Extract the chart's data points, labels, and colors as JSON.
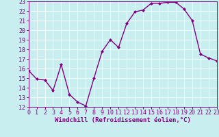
{
  "x": [
    0,
    1,
    2,
    3,
    4,
    5,
    6,
    7,
    8,
    9,
    10,
    11,
    12,
    13,
    14,
    15,
    16,
    17,
    18,
    19,
    20,
    21,
    22,
    23
  ],
  "y": [
    15.8,
    14.9,
    14.8,
    13.7,
    16.4,
    13.3,
    12.5,
    12.1,
    15.0,
    17.8,
    19.0,
    18.2,
    20.7,
    21.9,
    22.1,
    22.8,
    22.8,
    22.9,
    22.9,
    22.2,
    21.0,
    17.5,
    17.1,
    16.8
  ],
  "ylim": [
    12,
    23
  ],
  "xlim": [
    0,
    23
  ],
  "yticks": [
    12,
    13,
    14,
    15,
    16,
    17,
    18,
    19,
    20,
    21,
    22,
    23
  ],
  "xticks": [
    0,
    1,
    2,
    3,
    4,
    5,
    6,
    7,
    8,
    9,
    10,
    11,
    12,
    13,
    14,
    15,
    16,
    17,
    18,
    19,
    20,
    21,
    22,
    23
  ],
  "line_color": "#800080",
  "marker": "D",
  "marker_size": 2.0,
  "line_width": 1.0,
  "bg_color": "#c8eef0",
  "grid_color": "#ffffff",
  "xlabel": "Windchill (Refroidissement éolien,°C)",
  "xlabel_fontsize": 6.5,
  "tick_fontsize": 6.0,
  "fig_bg": "#c8eef0"
}
